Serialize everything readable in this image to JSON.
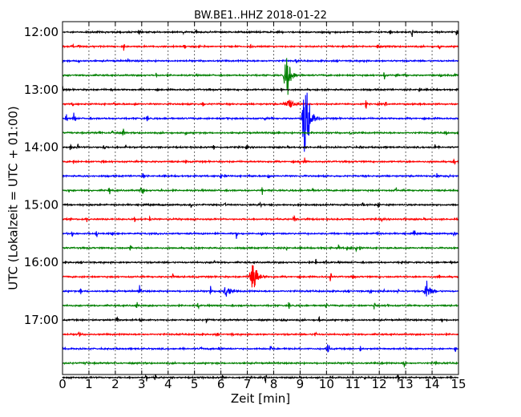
{
  "chart_data": {
    "type": "line",
    "title": "BW.BE1..HHZ 2018-01-22",
    "xlabel": "Zeit  [min]",
    "ylabel": "UTC (Lokalzeit = UTC + 01:00)",
    "xlim": [
      0,
      15
    ],
    "x_ticks": [
      "0",
      "1",
      "2",
      "3",
      "4",
      "5",
      "6",
      "7",
      "8",
      "9",
      "10",
      "11",
      "12",
      "13",
      "14",
      "15"
    ],
    "y_ticks": [
      "12:00",
      "13:00",
      "14:00",
      "15:00",
      "16:00",
      "17:00"
    ],
    "trace_interval_minutes": 15,
    "first_trace_utc": "12:00",
    "trace_colors": [
      "#000000",
      "#ff0000",
      "#0000ff",
      "#008000"
    ],
    "grid": "vertical dotted at each minute",
    "events": [
      {
        "trace": 3,
        "minute": 8.5,
        "amplitude": 1.0
      },
      {
        "trace": 5,
        "minute": 8.6,
        "amplitude": 0.35
      },
      {
        "trace": 6,
        "minute": 9.2,
        "amplitude": 2.5
      },
      {
        "trace": 17,
        "minute": 7.2,
        "amplitude": 1.2
      },
      {
        "trace": 18,
        "minute": 13.8,
        "amplitude": 0.45
      },
      {
        "trace": 18,
        "minute": 6.2,
        "amplitude": 0.3
      }
    ]
  }
}
